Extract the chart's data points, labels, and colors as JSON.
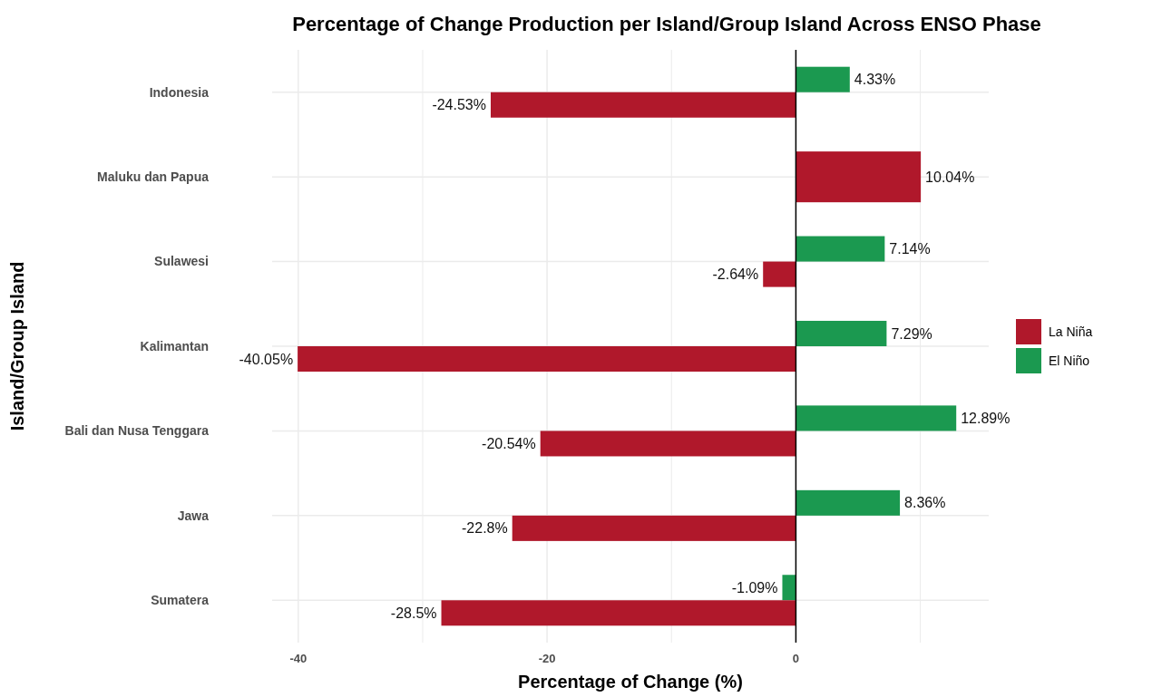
{
  "chart_data": {
    "type": "bar",
    "orientation": "horizontal",
    "title": "Percentage of Change Production per Island/Group Island Across ENSO Phase",
    "xlabel": "Percentage of Change (%)",
    "ylabel": "Island/Group Island",
    "categories": [
      "Indonesia",
      "Maluku dan Papua",
      "Sulawesi",
      "Kalimantan",
      "Bali dan Nusa Tenggara",
      "Jawa",
      "Sumatera"
    ],
    "series": [
      {
        "name": "La Niña",
        "color": "#b0182b",
        "values": [
          -24.53,
          10.04,
          -2.64,
          -40.05,
          -20.54,
          -22.8,
          -28.5
        ],
        "value_labels": [
          "-24.53%",
          "10.04%",
          "-2.64%",
          "-40.05%",
          "-20.54%",
          "-22.8%",
          "-28.5%"
        ]
      },
      {
        "name": "El Niño",
        "color": "#1b9950",
        "values": [
          4.33,
          null,
          7.14,
          7.29,
          12.89,
          8.36,
          -1.09
        ],
        "value_labels": [
          "4.33%",
          null,
          "7.14%",
          "7.29%",
          "12.89%",
          "8.36%",
          "-1.09%"
        ]
      }
    ],
    "xlim": [
      -42.1,
      15.5
    ],
    "xticks": [
      -40,
      {
        "value": -30,
        "label": null
      },
      -20,
      {
        "value": -10,
        "label": null
      },
      0,
      {
        "value": 10,
        "label": null
      }
    ],
    "ref_lines": [
      {
        "axis": "x",
        "value": 0,
        "color": "#000000"
      }
    ],
    "grid": true,
    "legend": "right"
  }
}
